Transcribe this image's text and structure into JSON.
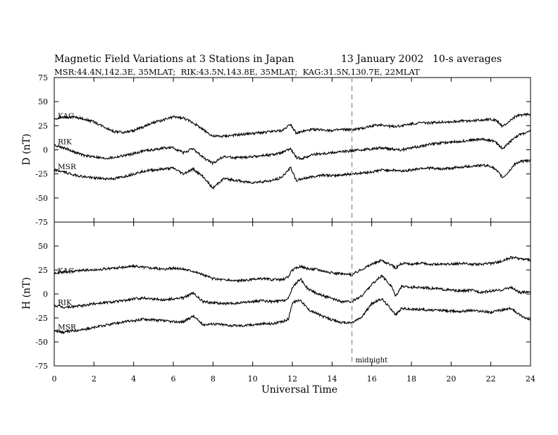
{
  "chart_data": {
    "type": "line",
    "title": "Magnetic Field Variations at 3 Stations in Japan",
    "date": "13 January 2002",
    "averaging": "10-s averages",
    "subtitle": "MSR:44.4N,142.3E, 35MLAT;  RIK:43.5N,143.8E, 35MLAT;  KAG:31.5N,130.7E, 22MLAT",
    "xlabel": "Universal Time",
    "xlim": [
      0,
      24
    ],
    "x_ticks": [
      "0",
      "2",
      "4",
      "6",
      "8",
      "10",
      "12",
      "14",
      "16",
      "18",
      "20",
      "22",
      "24"
    ],
    "annotation": {
      "text": "midnight",
      "x": 15
    },
    "panels": [
      {
        "ylabel": "D (nT)",
        "ylim": [
          -75,
          75
        ],
        "y_ticks": [
          "75",
          "50",
          "25",
          "0",
          "-25",
          "-50",
          "-75"
        ],
        "series": [
          {
            "name": "KAG",
            "x": [
              0,
              0.5,
              1,
              1.5,
              2,
              2.5,
              3,
              3.5,
              4,
              4.5,
              5,
              5.5,
              6,
              6.5,
              7,
              7.5,
              8,
              8.5,
              9,
              9.5,
              10,
              10.5,
              11,
              11.5,
              11.9,
              12.2,
              12.5,
              13,
              13.5,
              14,
              14.5,
              15,
              15.5,
              16,
              16.5,
              17,
              17.5,
              18,
              18.5,
              19,
              19.5,
              20,
              20.5,
              21,
              21.5,
              22,
              22.3,
              22.6,
              22.9,
              23.2,
              23.5,
              24
            ],
            "values": [
              32,
              34,
              34,
              32,
              29,
              24,
              19,
              18,
              20,
              24,
              28,
              31,
              34,
              33,
              28,
              21,
              14,
              14,
              15,
              16,
              17,
              18,
              19,
              20,
              27,
              17,
              19,
              21,
              21,
              20,
              21,
              21,
              22,
              25,
              26,
              24,
              25,
              27,
              28,
              28,
              29,
              29,
              30,
              30,
              31,
              32,
              30,
              24,
              29,
              34,
              36,
              37
            ]
          },
          {
            "name": "RIK",
            "x": [
              0,
              0.5,
              1,
              1.5,
              2,
              2.5,
              3,
              3.5,
              4,
              4.5,
              5,
              5.5,
              6,
              6.5,
              7,
              7.5,
              8,
              8.5,
              9,
              9.5,
              10,
              10.5,
              11,
              11.5,
              11.9,
              12.2,
              12.5,
              13,
              13.5,
              14,
              14.5,
              15,
              15.5,
              16,
              16.5,
              17,
              17.5,
              18,
              18.5,
              19,
              19.5,
              20,
              20.5,
              21,
              21.5,
              22,
              22.3,
              22.6,
              22.9,
              23.2,
              23.5,
              24
            ],
            "values": [
              5,
              2,
              -2,
              -6,
              -7,
              -9,
              -8,
              -6,
              -4,
              -1,
              0,
              2,
              2,
              -3,
              1,
              -8,
              -14,
              -7,
              -8,
              -8,
              -7,
              -6,
              -5,
              -3,
              1,
              -8,
              -9,
              -5,
              -4,
              -3,
              -2,
              -1,
              0,
              1,
              2,
              1,
              0,
              2,
              4,
              6,
              7,
              8,
              9,
              10,
              11,
              10,
              7,
              1,
              7,
              13,
              16,
              19
            ]
          },
          {
            "name": "MSR",
            "x": [
              0,
              0.5,
              1,
              1.5,
              2,
              2.5,
              3,
              3.5,
              4,
              4.5,
              5,
              5.5,
              6,
              6.5,
              7,
              7.5,
              8,
              8.5,
              9,
              9.5,
              10,
              10.5,
              11,
              11.5,
              11.9,
              12.2,
              12.5,
              13,
              13.5,
              14,
              14.5,
              15,
              15.5,
              16,
              16.5,
              17,
              17.5,
              18,
              18.5,
              19,
              19.5,
              20,
              20.5,
              21,
              21.5,
              22,
              22.3,
              22.6,
              22.9,
              23.2,
              23.5,
              24
            ],
            "values": [
              -21,
              -23,
              -26,
              -28,
              -29,
              -30,
              -30,
              -28,
              -25,
              -22,
              -21,
              -20,
              -19,
              -25,
              -20,
              -28,
              -40,
              -30,
              -31,
              -33,
              -34,
              -33,
              -32,
              -28,
              -18,
              -32,
              -30,
              -28,
              -26,
              -27,
              -26,
              -25,
              -24,
              -23,
              -21,
              -21,
              -22,
              -21,
              -19,
              -19,
              -20,
              -19,
              -18,
              -17,
              -16,
              -17,
              -22,
              -29,
              -23,
              -15,
              -12,
              -11
            ]
          }
        ]
      },
      {
        "ylabel": "H (nT)",
        "ylim": [
          -75,
          75
        ],
        "y_ticks": [
          "75",
          "50",
          "25",
          "0",
          "-25",
          "-50",
          "-75"
        ],
        "series": [
          {
            "name": "KAG",
            "x": [
              0,
              0.5,
              1,
              1.5,
              2,
              2.5,
              3,
              3.5,
              4,
              4.5,
              5,
              5.5,
              6,
              6.5,
              7,
              7.5,
              8,
              8.5,
              9,
              9.5,
              10,
              10.5,
              11,
              11.5,
              11.8,
              12,
              12.4,
              12.8,
              13.2,
              13.6,
              14,
              14.5,
              15,
              15.5,
              16,
              16.5,
              17,
              17.2,
              17.5,
              18,
              18.5,
              19,
              19.5,
              20,
              20.5,
              21,
              21.5,
              22,
              22.5,
              23,
              23.5,
              24
            ],
            "values": [
              21,
              23,
              24,
              25,
              25,
              26,
              27,
              28,
              29,
              28,
              27,
              26,
              27,
              26,
              24,
              20,
              16,
              15,
              14,
              14,
              15,
              16,
              15,
              15,
              18,
              25,
              29,
              26,
              26,
              24,
              22,
              21,
              20,
              26,
              31,
              35,
              30,
              27,
              32,
              31,
              32,
              31,
              31,
              31,
              32,
              31,
              31,
              32,
              34,
              38,
              37,
              35
            ]
          },
          {
            "name": "RIK",
            "x": [
              0,
              0.5,
              1,
              1.5,
              2,
              2.5,
              3,
              3.5,
              4,
              4.5,
              5,
              5.5,
              6,
              6.5,
              7,
              7.5,
              8,
              8.5,
              9,
              9.5,
              10,
              10.5,
              11,
              11.5,
              11.8,
              12,
              12.4,
              12.8,
              13.2,
              13.6,
              14,
              14.5,
              15,
              15.5,
              16,
              16.5,
              17,
              17.2,
              17.5,
              18,
              18.5,
              19,
              19.5,
              20,
              20.5,
              21,
              21.5,
              22,
              22.5,
              23,
              23.5,
              24
            ],
            "values": [
              -12,
              -14,
              -13,
              -12,
              -10,
              -9,
              -8,
              -7,
              -5,
              -4,
              -5,
              -6,
              -5,
              -4,
              1,
              -8,
              -9,
              -10,
              -10,
              -9,
              -8,
              -7,
              -8,
              -7,
              -5,
              7,
              16,
              5,
              1,
              -2,
              -5,
              -8,
              -8,
              -2,
              10,
              19,
              8,
              -2,
              8,
              7,
              7,
              6,
              5,
              4,
              3,
              4,
              2,
              3,
              4,
              7,
              1,
              3
            ]
          },
          {
            "name": "MSR",
            "x": [
              0,
              0.5,
              1,
              1.5,
              2,
              2.5,
              3,
              3.5,
              4,
              4.5,
              5,
              5.5,
              6,
              6.5,
              7,
              7.5,
              8,
              8.5,
              9,
              9.5,
              10,
              10.5,
              11,
              11.5,
              11.8,
              12,
              12.4,
              12.8,
              13.2,
              13.6,
              14,
              14.5,
              15,
              15.5,
              16,
              16.5,
              17,
              17.2,
              17.5,
              18,
              18.5,
              19,
              19.5,
              20,
              20.5,
              21,
              21.5,
              22,
              22.5,
              23,
              23.5,
              24
            ],
            "values": [
              -38,
              -40,
              -38,
              -37,
              -35,
              -33,
              -31,
              -29,
              -28,
              -26,
              -27,
              -28,
              -29,
              -29,
              -23,
              -32,
              -31,
              -32,
              -33,
              -33,
              -32,
              -31,
              -31,
              -29,
              -26,
              -9,
              -6,
              -16,
              -20,
              -24,
              -27,
              -30,
              -30,
              -24,
              -10,
              -5,
              -16,
              -22,
              -15,
              -16,
              -16,
              -17,
              -17,
              -18,
              -18,
              -17,
              -18,
              -19,
              -17,
              -15,
              -22,
              -28
            ]
          }
        ]
      }
    ]
  }
}
